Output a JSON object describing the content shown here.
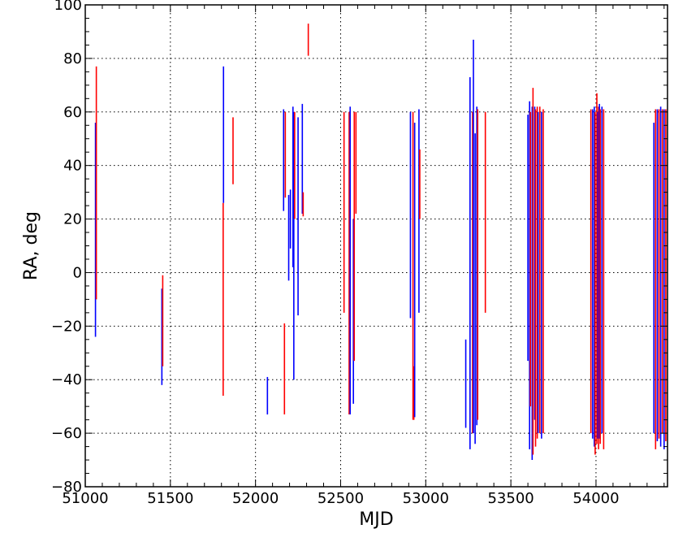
{
  "chart_data": {
    "type": "line",
    "xlabel": "MJD",
    "ylabel": "RA, deg",
    "xlim": [
      51000,
      54420
    ],
    "ylim": [
      -80,
      100
    ],
    "x_ticks": [
      51000,
      51500,
      52000,
      52500,
      53000,
      53500,
      54000
    ],
    "y_ticks": [
      -80,
      -60,
      -40,
      -20,
      0,
      20,
      40,
      60,
      80,
      100
    ],
    "grid": true,
    "colors": {
      "red": "#ff0000",
      "blue": "#0000ff"
    },
    "segments": [
      {
        "x": 51060,
        "y0": -24,
        "y1": 56,
        "color": "blue"
      },
      {
        "x": 51065,
        "y0": -10,
        "y1": 77,
        "color": "red"
      },
      {
        "x": 51450,
        "y0": -42,
        "y1": -6,
        "color": "blue"
      },
      {
        "x": 51455,
        "y0": -35,
        "y1": -1,
        "color": "red"
      },
      {
        "x": 51810,
        "y0": -46,
        "y1": 26,
        "color": "red"
      },
      {
        "x": 51812,
        "y0": 26,
        "y1": 77,
        "color": "blue"
      },
      {
        "x": 51868,
        "y0": 33,
        "y1": 58,
        "color": "red"
      },
      {
        "x": 52070,
        "y0": -53,
        "y1": -39,
        "color": "blue"
      },
      {
        "x": 52165,
        "y0": 23,
        "y1": 61,
        "color": "blue"
      },
      {
        "x": 52170,
        "y0": -53,
        "y1": -19,
        "color": "red"
      },
      {
        "x": 52175,
        "y0": 28,
        "y1": 60,
        "color": "red"
      },
      {
        "x": 52195,
        "y0": -3,
        "y1": 29,
        "color": "blue"
      },
      {
        "x": 52205,
        "y0": 9,
        "y1": 31,
        "color": "blue"
      },
      {
        "x": 52220,
        "y0": 2,
        "y1": 62,
        "color": "blue"
      },
      {
        "x": 52225,
        "y0": -40,
        "y1": 60,
        "color": "blue"
      },
      {
        "x": 52230,
        "y0": 20,
        "y1": 60,
        "color": "red"
      },
      {
        "x": 52250,
        "y0": -16,
        "y1": 58,
        "color": "blue"
      },
      {
        "x": 52275,
        "y0": 22,
        "y1": 63,
        "color": "blue"
      },
      {
        "x": 52280,
        "y0": 21,
        "y1": 30,
        "color": "red"
      },
      {
        "x": 52310,
        "y0": 81,
        "y1": 93,
        "color": "red"
      },
      {
        "x": 52520,
        "y0": -15,
        "y1": 60,
        "color": "red"
      },
      {
        "x": 52550,
        "y0": -53,
        "y1": 60,
        "color": "red"
      },
      {
        "x": 52556,
        "y0": -53,
        "y1": 62,
        "color": "blue"
      },
      {
        "x": 52575,
        "y0": -49,
        "y1": 20,
        "color": "blue"
      },
      {
        "x": 52580,
        "y0": -33,
        "y1": 60,
        "color": "red"
      },
      {
        "x": 52590,
        "y0": 22,
        "y1": 60,
        "color": "red"
      },
      {
        "x": 52910,
        "y0": -17,
        "y1": 60,
        "color": "blue"
      },
      {
        "x": 52925,
        "y0": -55,
        "y1": 60,
        "color": "red"
      },
      {
        "x": 52930,
        "y0": -55,
        "y1": -35,
        "color": "red"
      },
      {
        "x": 52935,
        "y0": -54,
        "y1": 56,
        "color": "blue"
      },
      {
        "x": 52960,
        "y0": -15,
        "y1": 61,
        "color": "blue"
      },
      {
        "x": 52965,
        "y0": 20,
        "y1": 46,
        "color": "red"
      },
      {
        "x": 53235,
        "y0": -58,
        "y1": -25,
        "color": "blue"
      },
      {
        "x": 53260,
        "y0": -66,
        "y1": 73,
        "color": "blue"
      },
      {
        "x": 53275,
        "y0": -60,
        "y1": 60,
        "color": "red"
      },
      {
        "x": 53280,
        "y0": -60,
        "y1": 87,
        "color": "blue"
      },
      {
        "x": 53290,
        "y0": -64,
        "y1": 52,
        "color": "blue"
      },
      {
        "x": 53300,
        "y0": -57,
        "y1": 62,
        "color": "blue"
      },
      {
        "x": 53305,
        "y0": -55,
        "y1": 61,
        "color": "red"
      },
      {
        "x": 53350,
        "y0": -15,
        "y1": 60,
        "color": "red"
      },
      {
        "x": 53600,
        "y0": -33,
        "y1": 59,
        "color": "blue"
      },
      {
        "x": 53610,
        "y0": -66,
        "y1": 64,
        "color": "blue"
      },
      {
        "x": 53615,
        "y0": -50,
        "y1": 60,
        "color": "red"
      },
      {
        "x": 53625,
        "y0": -70,
        "y1": 62,
        "color": "blue"
      },
      {
        "x": 53630,
        "y0": -68,
        "y1": 69,
        "color": "red"
      },
      {
        "x": 53640,
        "y0": -55,
        "y1": 62,
        "color": "blue"
      },
      {
        "x": 53645,
        "y0": -65,
        "y1": 61,
        "color": "red"
      },
      {
        "x": 53655,
        "y0": -62,
        "y1": 62,
        "color": "red"
      },
      {
        "x": 53660,
        "y0": -60,
        "y1": 60,
        "color": "blue"
      },
      {
        "x": 53670,
        "y0": -60,
        "y1": 62,
        "color": "red"
      },
      {
        "x": 53680,
        "y0": -62,
        "y1": 60,
        "color": "blue"
      },
      {
        "x": 53690,
        "y0": -60,
        "y1": 61,
        "color": "red"
      },
      {
        "x": 53970,
        "y0": -60,
        "y1": 61,
        "color": "red"
      },
      {
        "x": 53980,
        "y0": -62,
        "y1": 61,
        "color": "blue"
      },
      {
        "x": 53990,
        "y0": -65,
        "y1": 62,
        "color": "blue"
      },
      {
        "x": 53995,
        "y0": -68,
        "y1": 60,
        "color": "red"
      },
      {
        "x": 54005,
        "y0": -64,
        "y1": 67,
        "color": "red"
      },
      {
        "x": 54010,
        "y0": -62,
        "y1": 60,
        "color": "blue"
      },
      {
        "x": 54015,
        "y0": -66,
        "y1": 62,
        "color": "red"
      },
      {
        "x": 54020,
        "y0": -62,
        "y1": 63,
        "color": "blue"
      },
      {
        "x": 54025,
        "y0": -64,
        "y1": 61,
        "color": "red"
      },
      {
        "x": 54035,
        "y0": -60,
        "y1": 62,
        "color": "blue"
      },
      {
        "x": 54045,
        "y0": -66,
        "y1": 61,
        "color": "red"
      },
      {
        "x": 54340,
        "y0": -60,
        "y1": 56,
        "color": "blue"
      },
      {
        "x": 54350,
        "y0": -66,
        "y1": 61,
        "color": "red"
      },
      {
        "x": 54360,
        "y0": -63,
        "y1": 61,
        "color": "blue"
      },
      {
        "x": 54370,
        "y0": -62,
        "y1": 61,
        "color": "red"
      },
      {
        "x": 54380,
        "y0": -65,
        "y1": 62,
        "color": "blue"
      },
      {
        "x": 54390,
        "y0": -60,
        "y1": 61,
        "color": "red"
      },
      {
        "x": 54400,
        "y0": -66,
        "y1": 61,
        "color": "blue"
      },
      {
        "x": 54410,
        "y0": -63,
        "y1": 61,
        "color": "red"
      }
    ]
  }
}
